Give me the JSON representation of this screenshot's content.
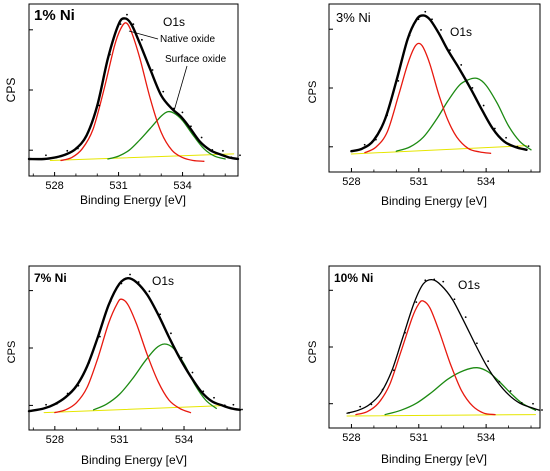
{
  "chart_data": [
    {
      "type": "line",
      "panel_label": "1% Ni",
      "peak_label": "O1s",
      "annotations": [
        "Native oxide",
        "Surface oxide"
      ],
      "xlabel": "Binding Energy [eV]",
      "ylabel": "CPS",
      "xlim": [
        526.8,
        536.6
      ],
      "ylim": [
        0,
        1.0
      ],
      "xticks": [
        528,
        531,
        534
      ],
      "xtick_labels": [
        "528",
        "531",
        "534"
      ],
      "series": [
        {
          "role": "envelope",
          "color": "#000000",
          "x": [
            526.8,
            527.5,
            528.0,
            528.5,
            529.0,
            529.5,
            530.0,
            530.5,
            531.0,
            531.3,
            531.6,
            532.0,
            532.5,
            533.0,
            533.5,
            533.9,
            534.3,
            534.8,
            535.3,
            535.8,
            536.2,
            536.6
          ],
          "y": [
            0.02,
            0.02,
            0.03,
            0.05,
            0.09,
            0.18,
            0.38,
            0.7,
            0.93,
            0.97,
            0.93,
            0.8,
            0.62,
            0.45,
            0.36,
            0.31,
            0.24,
            0.14,
            0.08,
            0.05,
            0.03,
            0.02
          ]
        },
        {
          "role": "component-native-oxide",
          "color": "#e8190f",
          "x": [
            528.3,
            528.8,
            529.3,
            529.8,
            530.3,
            530.8,
            531.1,
            531.35,
            531.6,
            532.0,
            532.5,
            533.0,
            533.5,
            534.0,
            534.5,
            535.0
          ],
          "y": [
            0.01,
            0.03,
            0.09,
            0.22,
            0.48,
            0.78,
            0.9,
            0.94,
            0.88,
            0.7,
            0.42,
            0.2,
            0.08,
            0.03,
            0.01,
            0.005
          ]
        },
        {
          "role": "component-surface-oxide",
          "color": "#1c8a12",
          "x": [
            530.5,
            531.0,
            531.5,
            532.0,
            532.5,
            533.0,
            533.3,
            533.6,
            534.0,
            534.5,
            535.0,
            535.5,
            536.0
          ],
          "y": [
            0.02,
            0.04,
            0.08,
            0.15,
            0.23,
            0.31,
            0.34,
            0.33,
            0.28,
            0.18,
            0.09,
            0.04,
            0.02
          ]
        },
        {
          "role": "background",
          "color": "#e6e600",
          "x": [
            527.8,
            536.4
          ],
          "y": [
            0.01,
            0.055
          ]
        }
      ]
    },
    {
      "type": "line",
      "panel_label": "3% Ni",
      "peak_label": "O1s",
      "xlabel": "Binding Energy [eV]",
      "ylabel": "CPS",
      "xlim": [
        527.0,
        536.4
      ],
      "ylim": [
        0,
        1.0
      ],
      "xticks": [
        528,
        531,
        534
      ],
      "xtick_labels": [
        "528",
        "531",
        "534"
      ],
      "series": [
        {
          "role": "envelope",
          "color": "#000000",
          "x": [
            528.0,
            528.5,
            529.0,
            529.5,
            530.0,
            530.5,
            530.9,
            531.2,
            531.5,
            531.9,
            532.3,
            532.8,
            533.3,
            533.8,
            534.3,
            534.8,
            535.3,
            535.8
          ],
          "y": [
            0.02,
            0.04,
            0.1,
            0.25,
            0.52,
            0.82,
            0.96,
            0.99,
            0.96,
            0.86,
            0.74,
            0.61,
            0.47,
            0.32,
            0.18,
            0.09,
            0.05,
            0.03
          ]
        },
        {
          "role": "component-native-oxide",
          "color": "#e8190f",
          "x": [
            528.6,
            529.1,
            529.6,
            530.1,
            530.5,
            530.8,
            531.0,
            531.2,
            531.5,
            531.9,
            532.3,
            532.7,
            533.2,
            533.7,
            534.2
          ],
          "y": [
            0.01,
            0.05,
            0.16,
            0.42,
            0.64,
            0.76,
            0.79,
            0.76,
            0.64,
            0.42,
            0.24,
            0.12,
            0.04,
            0.015,
            0.005
          ]
        },
        {
          "role": "component-surface-oxide",
          "color": "#1c8a12",
          "x": [
            530.0,
            530.6,
            531.2,
            531.8,
            532.3,
            532.8,
            533.2,
            533.6,
            534.0,
            534.5,
            535.0,
            535.5,
            536.0
          ],
          "y": [
            0.02,
            0.05,
            0.12,
            0.25,
            0.38,
            0.49,
            0.53,
            0.54,
            0.49,
            0.36,
            0.2,
            0.09,
            0.03
          ]
        },
        {
          "role": "background",
          "color": "#e6e600",
          "x": [
            528.0,
            535.8
          ],
          "y": [
            0.0,
            0.06
          ]
        }
      ]
    },
    {
      "type": "line",
      "panel_label": "7% Ni",
      "peak_label": "O1s",
      "xlabel": "Binding Energy [eV]",
      "ylabel": "CPS",
      "xlim": [
        526.8,
        536.6
      ],
      "ylim": [
        0,
        1.0
      ],
      "xticks": [
        528,
        531,
        534
      ],
      "xtick_labels": [
        "528",
        "531",
        "534"
      ],
      "series": [
        {
          "role": "envelope",
          "color": "#000000",
          "x": [
            526.8,
            527.5,
            528.0,
            528.5,
            529.0,
            529.5,
            530.0,
            530.5,
            531.0,
            531.4,
            531.8,
            532.3,
            532.8,
            533.3,
            533.8,
            534.3,
            534.8,
            535.3,
            535.8,
            536.2,
            536.6
          ],
          "y": [
            0.02,
            0.04,
            0.07,
            0.12,
            0.2,
            0.34,
            0.55,
            0.78,
            0.93,
            0.97,
            0.94,
            0.85,
            0.71,
            0.55,
            0.4,
            0.27,
            0.16,
            0.09,
            0.06,
            0.04,
            0.03
          ]
        },
        {
          "role": "component-native-oxide",
          "color": "#e8190f",
          "x": [
            528.0,
            528.5,
            529.0,
            529.5,
            530.0,
            530.5,
            530.9,
            531.1,
            531.4,
            531.8,
            532.3,
            532.8,
            533.3,
            533.8,
            534.3
          ],
          "y": [
            0.01,
            0.03,
            0.08,
            0.19,
            0.4,
            0.65,
            0.79,
            0.82,
            0.78,
            0.64,
            0.42,
            0.23,
            0.1,
            0.04,
            0.01
          ]
        },
        {
          "role": "component-surface-oxide",
          "color": "#1c8a12",
          "x": [
            529.8,
            530.4,
            531.0,
            531.6,
            532.2,
            532.7,
            533.1,
            533.5,
            534.0,
            534.5,
            535.0,
            535.5
          ],
          "y": [
            0.03,
            0.07,
            0.14,
            0.25,
            0.38,
            0.47,
            0.5,
            0.47,
            0.36,
            0.21,
            0.1,
            0.04
          ]
        },
        {
          "role": "background",
          "color": "#e6e600",
          "x": [
            527.5,
            535.8
          ],
          "y": [
            0.01,
            0.06
          ]
        }
      ]
    },
    {
      "type": "line",
      "panel_label": "10% Ni",
      "peak_label": "O1s",
      "xlabel": "Binding Energy [eV]",
      "ylabel": "CPS",
      "xlim": [
        527.0,
        536.4
      ],
      "ylim": [
        0,
        1.0
      ],
      "xticks": [
        528,
        531,
        534
      ],
      "xtick_labels": [
        "528",
        "531",
        "534"
      ],
      "series": [
        {
          "role": "envelope",
          "color": "#000000",
          "x": [
            527.8,
            528.3,
            528.8,
            529.3,
            529.8,
            530.3,
            530.8,
            531.2,
            531.6,
            532.0,
            532.5,
            533.0,
            533.5,
            534.0,
            534.5,
            535.0,
            535.5,
            536.0,
            536.4
          ],
          "y": [
            0.02,
            0.04,
            0.08,
            0.16,
            0.32,
            0.56,
            0.8,
            0.93,
            0.96,
            0.92,
            0.82,
            0.67,
            0.51,
            0.36,
            0.24,
            0.15,
            0.09,
            0.06,
            0.04
          ]
        },
        {
          "role": "component-native-oxide",
          "color": "#e8190f",
          "x": [
            528.2,
            528.7,
            529.2,
            529.7,
            530.2,
            530.7,
            531.0,
            531.2,
            531.5,
            531.9,
            532.4,
            532.9,
            533.4,
            533.9,
            534.4
          ],
          "y": [
            0.01,
            0.03,
            0.09,
            0.22,
            0.45,
            0.69,
            0.79,
            0.81,
            0.76,
            0.6,
            0.37,
            0.18,
            0.07,
            0.02,
            0.01
          ]
        },
        {
          "role": "component-surface-oxide",
          "color": "#1c8a12",
          "x": [
            529.5,
            530.2,
            530.9,
            531.6,
            532.3,
            533.0,
            533.6,
            534.1,
            534.6,
            535.1,
            535.6,
            536.2
          ],
          "y": [
            0.01,
            0.04,
            0.09,
            0.17,
            0.26,
            0.32,
            0.34,
            0.31,
            0.24,
            0.16,
            0.09,
            0.04
          ]
        },
        {
          "role": "background",
          "color": "#e6e600",
          "x": [
            527.8,
            536.2
          ],
          "y": [
            0.0,
            0.01
          ]
        }
      ]
    }
  ]
}
